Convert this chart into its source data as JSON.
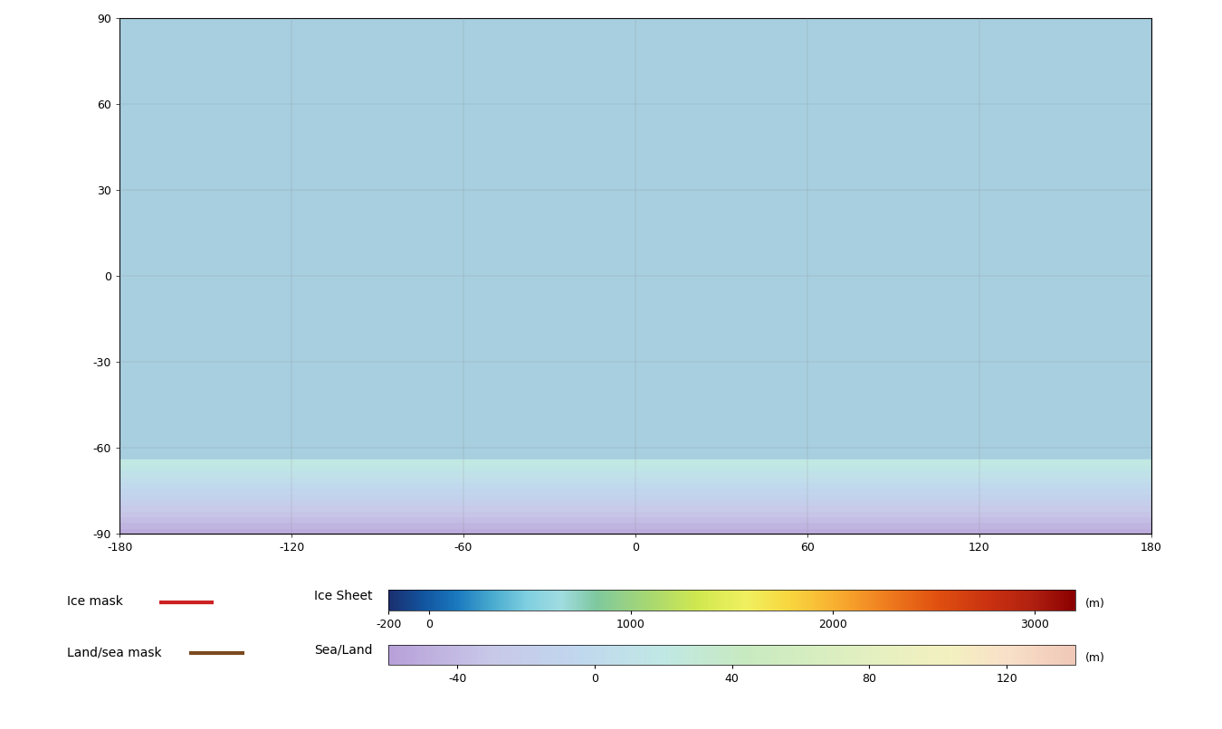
{
  "figsize": [
    13.5,
    8.06
  ],
  "dpi": 100,
  "background_color": "#ffffff",
  "ocean_color": "#a8cfe0",
  "land_color": "#f5e6c8",
  "ice_mask_color": "#cc2222",
  "land_sea_mask_color": "#7a4a1e",
  "xticks": [
    -180,
    -120,
    -60,
    0,
    60,
    120,
    180
  ],
  "yticks": [
    -90,
    -60,
    -30,
    0,
    30,
    60,
    90
  ],
  "ice_sheet_vmin": -200,
  "ice_sheet_vmax": 3200,
  "ice_sheet_ticks": [
    -200,
    0,
    1000,
    2000,
    3000
  ],
  "ice_sheet_ticklabels": [
    "-200",
    "0",
    "1000",
    "2000",
    "3000"
  ],
  "sea_land_vmin": -60,
  "sea_land_vmax": 140,
  "sea_land_ticks": [
    -40,
    0,
    40,
    80,
    120
  ],
  "sea_land_ticklabels": [
    "-40",
    "0",
    "40",
    "80",
    "120"
  ],
  "colorbar_unit_ice": "(m)",
  "colorbar_unit_sea": "(m)",
  "ice_sheet_label": "Ice Sheet",
  "sea_land_label": "Sea/Land",
  "ice_mask_label": "Ice mask",
  "land_sea_mask_label": "Land/sea mask",
  "map_xlim": [
    -180,
    180
  ],
  "map_ylim": [
    -90,
    90
  ]
}
